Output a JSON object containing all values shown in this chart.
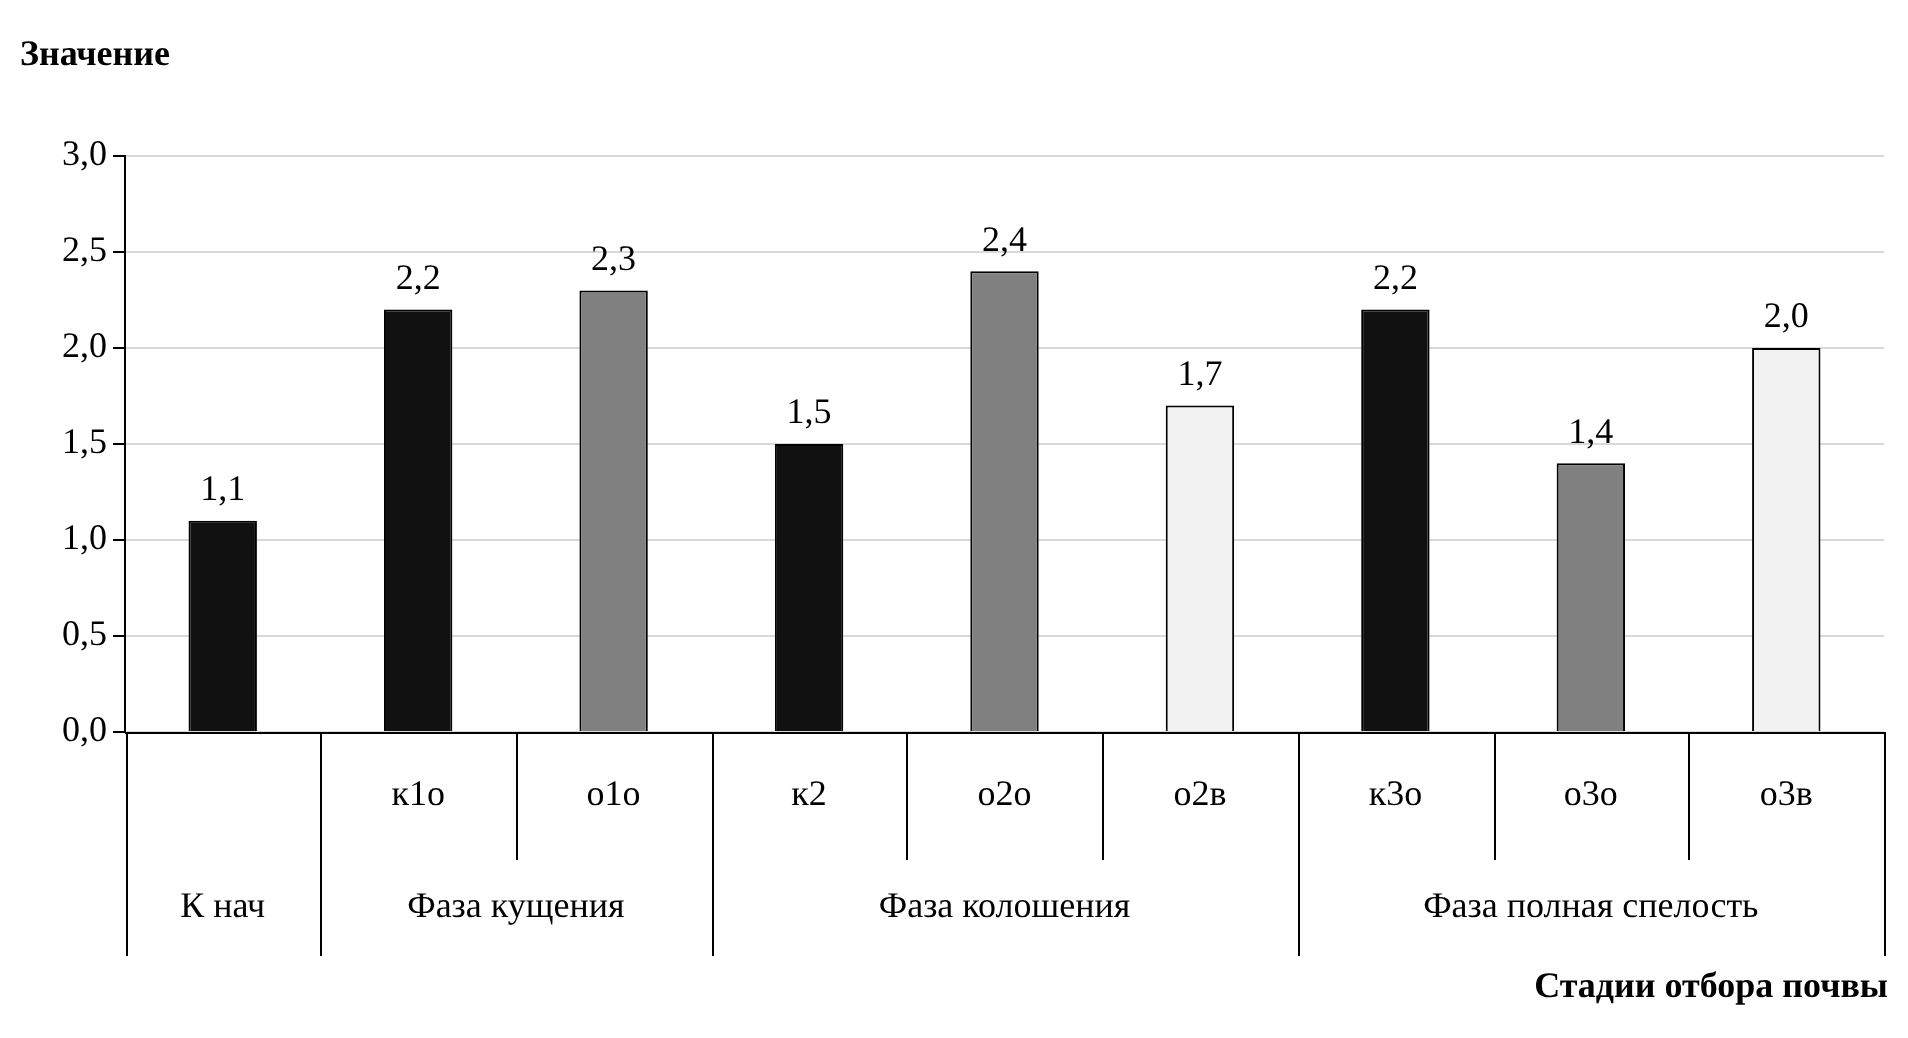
{
  "chart_data": {
    "type": "bar",
    "ylabel": "Значение",
    "xlabel": "Стадии отбора почвы",
    "categories": [
      null,
      "к1о",
      "о1о",
      "к2",
      "о2о",
      "о2в",
      "к3о",
      "о3о",
      "о3в"
    ],
    "values": [
      1.1,
      2.2,
      2.3,
      1.5,
      2.4,
      1.7,
      2.2,
      1.4,
      2.0
    ],
    "colors": [
      "#111111",
      "#111111",
      "#808080",
      "#111111",
      "#808080",
      "#f2f2f2",
      "#111111",
      "#808080",
      "#f2f2f2"
    ],
    "value_labels": [
      "1,1",
      "2,2",
      "2,3",
      "1,5",
      "2,4",
      "1,7",
      "2,2",
      "1,4",
      "2,0"
    ],
    "ylim": [
      0,
      3
    ],
    "yticks": [
      {
        "value": 0,
        "label": "0,0"
      },
      {
        "value": 0.5,
        "label": "0,5"
      },
      {
        "value": 1,
        "label": "1,0"
      },
      {
        "value": 1.5,
        "label": "1,5"
      },
      {
        "value": 2,
        "label": "2,0"
      },
      {
        "value": 2.5,
        "label": "2,5"
      },
      {
        "value": 3,
        "label": "3,0"
      }
    ],
    "grid": "y",
    "annotations": [
      "К нач",
      "Фаза кущения",
      "Фаза колошения",
      "Фаза полная спелость"
    ]
  }
}
